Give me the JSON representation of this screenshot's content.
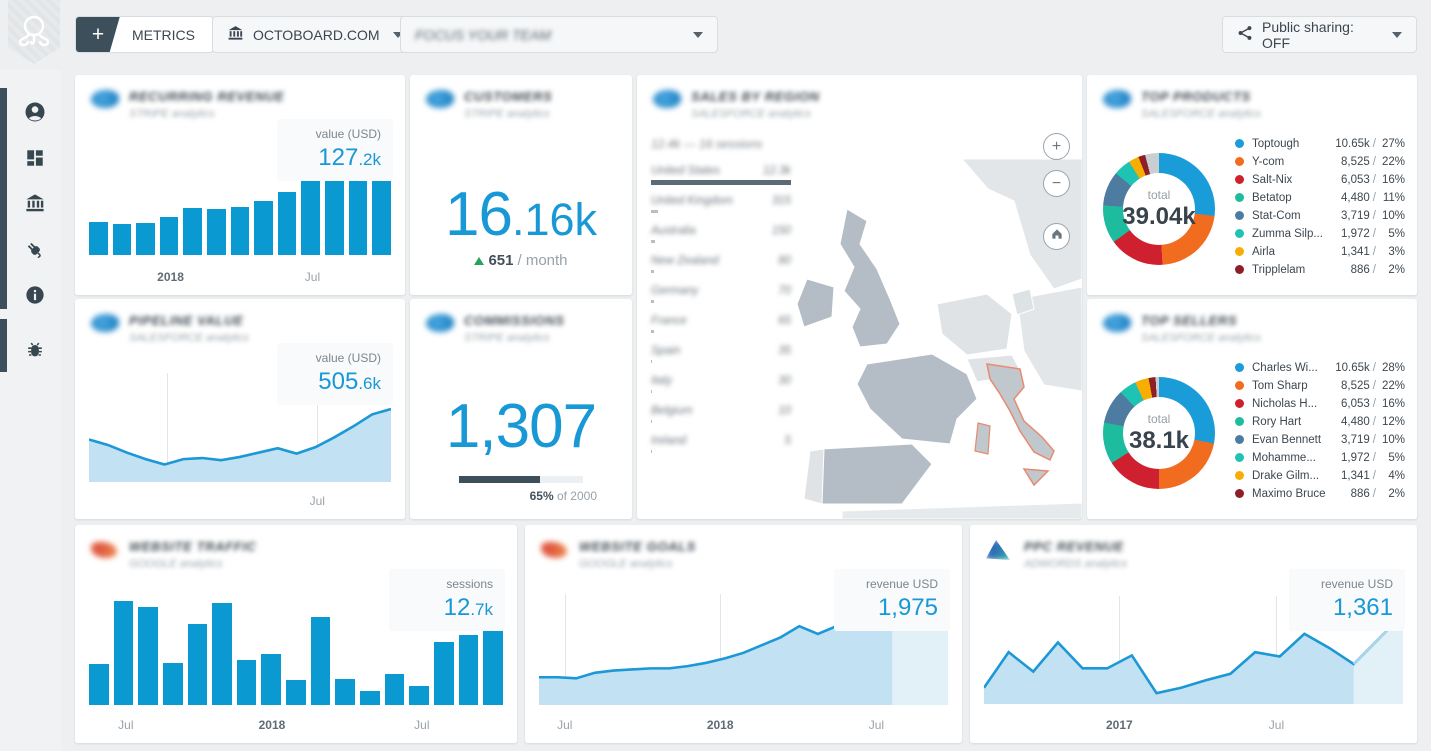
{
  "header": {
    "metrics_label": "METRICS",
    "site_label": "OCTOBOARD.COM",
    "dashboard_label": "FOCUS YOUR TEAM",
    "public_sharing_label": "Public sharing: OFF"
  },
  "sidebar": {
    "items": [
      "account",
      "dashboards",
      "data-sources",
      "integrations",
      "info",
      "debug"
    ]
  },
  "map_controls": {
    "zoom_in": "+",
    "zoom_out": "−"
  },
  "cards": {
    "recurring_revenue": {
      "title": "RECURRING REVENUE",
      "subtitle": "STRIPE analytics",
      "badge_label": "value (USD)",
      "value_main": "127",
      "value_suffix": ".2k"
    },
    "leads": {
      "title": "CUSTOMERS",
      "subtitle": "STRIPE analytics",
      "value_main": "16",
      "value_suffix": ".16k",
      "delta": "651",
      "delta_unit": "/ month"
    },
    "sales_by_region": {
      "title": "SALES BY REGION",
      "subtitle": "SALESFORCE analytics",
      "summary": "12.4k — 16 sessions",
      "countries": [
        {
          "name": "United States",
          "value": "12.3k",
          "bar": 100
        },
        {
          "name": "United Kingdom",
          "value": "315",
          "bar": 5
        },
        {
          "name": "Australia",
          "value": "150",
          "bar": 3
        },
        {
          "name": "New Zealand",
          "value": "80",
          "bar": 2
        },
        {
          "name": "Germany",
          "value": "70",
          "bar": 2
        },
        {
          "name": "France",
          "value": "65",
          "bar": 2
        },
        {
          "name": "Spain",
          "value": "35",
          "bar": 1
        },
        {
          "name": "Italy",
          "value": "30",
          "bar": 1
        },
        {
          "name": "Belgium",
          "value": "10",
          "bar": 1
        },
        {
          "name": "Ireland",
          "value": "5",
          "bar": 1
        }
      ]
    },
    "top_products": {
      "title": "TOP PRODUCTS",
      "subtitle": "SALESFORCE analytics",
      "total_label": "total",
      "total": "39.04k",
      "slices": [
        {
          "name": "Toptough",
          "value": "10.65k",
          "pct": "27%",
          "p": 27,
          "color": "#1a9cd8"
        },
        {
          "name": "Y-com",
          "value": "8,525",
          "pct": "22%",
          "p": 22,
          "color": "#f26c20"
        },
        {
          "name": "Salt-Nix",
          "value": "6,053",
          "pct": "16%",
          "p": 16,
          "color": "#cf2030"
        },
        {
          "name": "Betatop",
          "value": "4,480",
          "pct": "11%",
          "p": 11,
          "color": "#1dbc9e"
        },
        {
          "name": "Stat-Com",
          "value": "3,719",
          "pct": "10%",
          "p": 10,
          "color": "#4e7ca1"
        },
        {
          "name": "Zumma Silp...",
          "value": "1,972",
          "pct": "5%",
          "p": 5,
          "color": "#1ec3b4"
        },
        {
          "name": "Airla",
          "value": "1,341",
          "pct": "3%",
          "p": 3,
          "color": "#f8ae00"
        },
        {
          "name": "Tripplelam",
          "value": "886",
          "pct": "2%",
          "p": 2,
          "color": "#8e1f26"
        },
        {
          "name": "Other",
          "value": "",
          "pct": "",
          "p": 4,
          "color": "#c9ced3",
          "hidden": true
        }
      ]
    },
    "pipeline_value": {
      "title": "PIPELINE VALUE",
      "subtitle": "SALESFORCE analytics",
      "badge_label": "value (USD)",
      "value_main": "505",
      "value_suffix": ".6k"
    },
    "commissions": {
      "title": "COMMISSIONS",
      "subtitle": "STRIPE analytics",
      "value": "1,307",
      "progress_pct": 65,
      "progress_bold": "65%",
      "progress_rest": " of 2000"
    },
    "top_sellers": {
      "title": "TOP SELLERS",
      "subtitle": "SALESFORCE analytics",
      "total_label": "total",
      "total": "38.1k",
      "slices": [
        {
          "name": "Charles Wi...",
          "value": "10.65k",
          "pct": "28%",
          "p": 28,
          "color": "#1a9cd8"
        },
        {
          "name": "Tom Sharp",
          "value": "8,525",
          "pct": "22%",
          "p": 22,
          "color": "#f26c20"
        },
        {
          "name": "Nicholas H...",
          "value": "6,053",
          "pct": "16%",
          "p": 16,
          "color": "#cf2030"
        },
        {
          "name": "Rory Hart",
          "value": "4,480",
          "pct": "12%",
          "p": 12,
          "color": "#1dbc9e"
        },
        {
          "name": "Evan Bennett",
          "value": "3,719",
          "pct": "10%",
          "p": 10,
          "color": "#4e7ca1"
        },
        {
          "name": "Mohamme...",
          "value": "1,972",
          "pct": "5%",
          "p": 5,
          "color": "#1ec3b4"
        },
        {
          "name": "Drake Gilm...",
          "value": "1,341",
          "pct": "4%",
          "p": 4,
          "color": "#f8ae00"
        },
        {
          "name": "Maximo Bruce",
          "value": "886",
          "pct": "2%",
          "p": 2,
          "color": "#8e1f26"
        },
        {
          "name": "Other",
          "value": "",
          "pct": "",
          "p": 1,
          "color": "#c9ced3",
          "hidden": true
        }
      ]
    },
    "website_traffic": {
      "title": "WEBSITE TRAFFIC",
      "subtitle": "GOOGLE analytics",
      "badge_label": "sessions",
      "value_main": "12",
      "value_suffix": ".7k"
    },
    "website_goals": {
      "title": "WEBSITE GOALS",
      "subtitle": "GOOGLE analytics",
      "badge_label": "revenue USD",
      "value_main": "1,975",
      "value_suffix": ""
    },
    "ppc_revenue": {
      "title": "PPC REVENUE",
      "subtitle": "ADWORDS analytics",
      "badge_label": "revenue USD",
      "value_main": "1,361",
      "value_suffix": ""
    }
  },
  "chart_data": [
    {
      "id": "recurring_revenue",
      "type": "bar",
      "title": "Recurring revenue",
      "ylabel": "value (USD)",
      "values": [
        37,
        35,
        36,
        43,
        53,
        52,
        54,
        61,
        72,
        84,
        86,
        98,
        100
      ],
      "cap": 9,
      "x_labels": [
        {
          "pos": 27,
          "text": "2018",
          "bold": true
        },
        {
          "pos": 74,
          "text": "Jul"
        }
      ]
    },
    {
      "id": "pipeline_value",
      "type": "area",
      "title": "Pipeline value",
      "ylabel": "value (USD)",
      "values": [
        39,
        34,
        27,
        21,
        16,
        21,
        22,
        20,
        23,
        27,
        31,
        26,
        32,
        41,
        51,
        62,
        67
      ],
      "gridlines": [
        25.7,
        75.6
      ],
      "x_labels": [
        {
          "pos": 75.6,
          "text": "Jul"
        }
      ]
    },
    {
      "id": "website_traffic",
      "type": "bar",
      "title": "Website traffic",
      "ylabel": "sessions",
      "values": [
        39,
        100,
        94,
        40,
        78,
        98,
        43,
        49,
        24,
        85,
        25,
        13,
        30,
        18,
        61,
        67,
        73
      ],
      "cap": 18,
      "x_labels": [
        {
          "pos": 8.9,
          "text": "Jul"
        },
        {
          "pos": 44.2,
          "text": "2018",
          "bold": true
        },
        {
          "pos": 80.4,
          "text": "Jul"
        }
      ]
    },
    {
      "id": "website_goals",
      "type": "area",
      "title": "Website goals",
      "ylabel": "revenue USD",
      "values": [
        25,
        25,
        24,
        29,
        31,
        32,
        33,
        33,
        35,
        38,
        42,
        47,
        54,
        61,
        71,
        64,
        71,
        78,
        81,
        77,
        78,
        81,
        77
      ],
      "highlight_from": 19,
      "gridlines": [
        6.3,
        44.3,
        82.5
      ],
      "x_labels": [
        {
          "pos": 6.3,
          "text": "Jul"
        },
        {
          "pos": 44.3,
          "text": "2018",
          "bold": true
        },
        {
          "pos": 82.5,
          "text": "Jul"
        }
      ]
    },
    {
      "id": "ppc_revenue",
      "type": "area",
      "title": "PPC revenue",
      "ylabel": "revenue USD",
      "values": [
        15,
        48,
        30,
        57,
        33,
        33,
        45,
        10,
        15,
        22,
        28,
        48,
        44,
        65,
        52,
        37,
        60,
        83
      ],
      "highlight_from": 15,
      "gridlines": [
        32.3,
        69.8
      ],
      "x_labels": [
        {
          "pos": 32.3,
          "text": "2017",
          "bold": true
        },
        {
          "pos": 69.8,
          "text": "Jul"
        }
      ]
    },
    {
      "id": "top_products",
      "type": "donut",
      "title": "Top products",
      "total": "39.04k"
    },
    {
      "id": "top_sellers",
      "type": "donut",
      "title": "Top sellers",
      "total": "38.1k"
    }
  ]
}
